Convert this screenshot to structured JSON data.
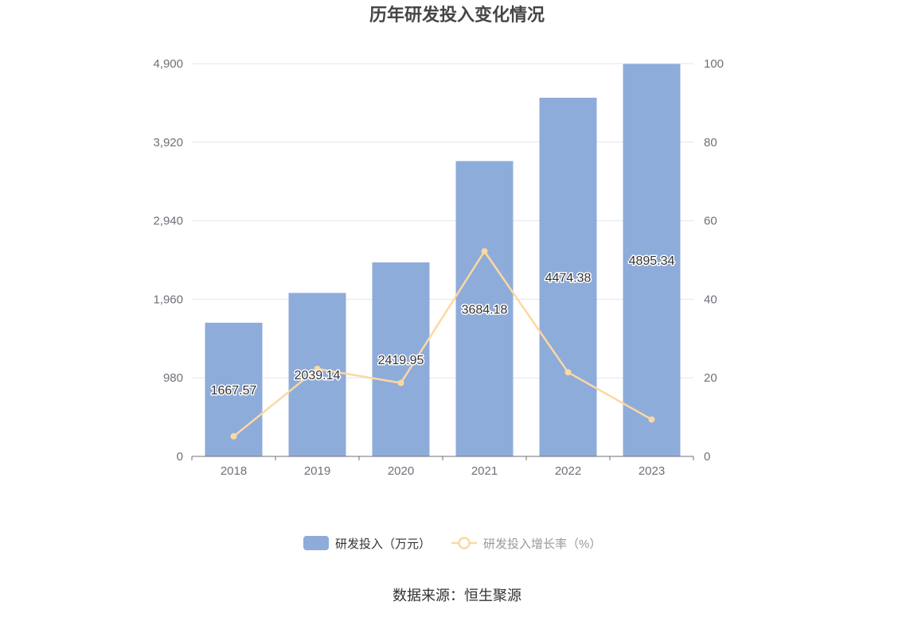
{
  "chart_data": {
    "type": "bar",
    "title": "历年研发投入变化情况",
    "categories": [
      "2018",
      "2019",
      "2020",
      "2021",
      "2022",
      "2023"
    ],
    "series": [
      {
        "name": "研发投入（万元）",
        "type": "bar",
        "y_axis": "left",
        "values": [
          1667.57,
          2039.14,
          2419.95,
          3684.18,
          4474.38,
          4895.34
        ],
        "color": "#8eacd9"
      },
      {
        "name": "研发投入增长率（%）",
        "type": "line",
        "y_axis": "right",
        "values": [
          5.1,
          22.3,
          18.7,
          52.2,
          21.4,
          9.4
        ],
        "color": "#fcd8a2"
      }
    ],
    "y_left": {
      "range": [
        0,
        4900
      ],
      "ticks": [
        "0",
        "980",
        "1,960",
        "2,940",
        "3,920",
        "4,900"
      ]
    },
    "y_right": {
      "range": [
        0,
        100
      ],
      "ticks": [
        "0",
        "20",
        "40",
        "60",
        "80",
        "100"
      ]
    },
    "grid": true,
    "legend_position": "bottom",
    "colors": {
      "grid": "#e0e6f1",
      "axis": "#6e7079"
    }
  },
  "source": "数据来源：恒生聚源"
}
